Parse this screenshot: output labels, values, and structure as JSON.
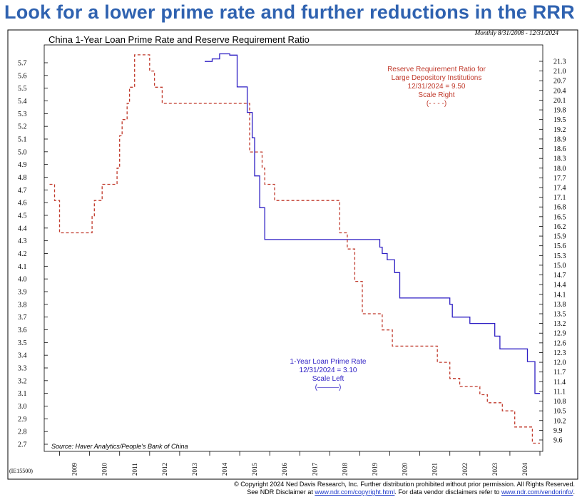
{
  "headline": "Look for a lower prime rate and further reductions in the RRR",
  "chart_data": {
    "type": "line",
    "title": "China 1-Year Loan Prime Rate and Reserve Requirement Ratio",
    "frequency_note": "Monthly 8/31/2008 - 12/31/2024",
    "source": "Source: Haver Analytics/People's Bank of China",
    "chart_code": "(IE15500)",
    "x_ticks": [
      "2009",
      "2010",
      "2011",
      "2012",
      "2013",
      "2014",
      "2015",
      "2016",
      "2017",
      "2018",
      "2019",
      "2020",
      "2021",
      "2022",
      "2023",
      "2024"
    ],
    "left_axis": {
      "ylim": [
        2.7,
        5.7
      ],
      "ticks": [
        "5.7",
        "5.6",
        "5.5",
        "5.4",
        "5.3",
        "5.2",
        "5.1",
        "5.0",
        "4.9",
        "4.8",
        "4.7",
        "4.6",
        "4.5",
        "4.4",
        "4.3",
        "4.2",
        "4.1",
        "4.0",
        "3.9",
        "3.8",
        "3.7",
        "3.6",
        "3.5",
        "3.4",
        "3.3",
        "3.2",
        "3.1",
        "3.0",
        "2.9",
        "2.8",
        "2.7"
      ]
    },
    "right_axis": {
      "ylim": [
        9.6,
        21.3
      ],
      "ticks": [
        "21.3",
        "21.0",
        "20.7",
        "20.4",
        "20.1",
        "19.8",
        "19.5",
        "19.2",
        "18.9",
        "18.6",
        "18.3",
        "18.0",
        "17.7",
        "17.4",
        "17.1",
        "16.8",
        "16.5",
        "16.2",
        "15.9",
        "15.6",
        "15.3",
        "15.0",
        "14.7",
        "14.4",
        "14.1",
        "13.8",
        "13.5",
        "13.2",
        "12.9",
        "12.6",
        "12.3",
        "12.0",
        "11.7",
        "11.4",
        "11.1",
        "10.8",
        "10.5",
        "10.2",
        "9.9",
        "9.6"
      ]
    },
    "series": [
      {
        "name": "1-Year Loan Prime Rate",
        "axis": "left",
        "color": "#2e1fc4",
        "style": "solid",
        "annotation": [
          "1-Year Loan Prime Rate",
          "12/31/2024 = 3.10",
          "Scale Left",
          "(———)"
        ],
        "points": [
          [
            "2013-10-31",
            5.71
          ],
          [
            "2014-01-31",
            5.73
          ],
          [
            "2014-04-30",
            5.77
          ],
          [
            "2014-08-31",
            5.76
          ],
          [
            "2014-10-31",
            5.76
          ],
          [
            "2014-11-30",
            5.51
          ],
          [
            "2015-02-28",
            5.51
          ],
          [
            "2015-03-31",
            5.31
          ],
          [
            "2015-04-30",
            5.31
          ],
          [
            "2015-05-31",
            5.11
          ],
          [
            "2015-06-30",
            4.81
          ],
          [
            "2015-07-31",
            4.81
          ],
          [
            "2015-08-31",
            4.56
          ],
          [
            "2015-09-30",
            4.56
          ],
          [
            "2015-10-31",
            4.31
          ],
          [
            "2019-07-31",
            4.31
          ],
          [
            "2019-08-31",
            4.25
          ],
          [
            "2019-09-30",
            4.2
          ],
          [
            "2019-11-30",
            4.15
          ],
          [
            "2019-12-31",
            4.15
          ],
          [
            "2020-02-29",
            4.05
          ],
          [
            "2020-04-30",
            3.85
          ],
          [
            "2021-11-30",
            3.85
          ],
          [
            "2021-12-31",
            3.8
          ],
          [
            "2022-01-31",
            3.7
          ],
          [
            "2022-07-31",
            3.7
          ],
          [
            "2022-08-31",
            3.65
          ],
          [
            "2023-05-31",
            3.65
          ],
          [
            "2023-06-30",
            3.55
          ],
          [
            "2023-07-31",
            3.55
          ],
          [
            "2023-08-31",
            3.45
          ],
          [
            "2024-06-30",
            3.45
          ],
          [
            "2024-07-31",
            3.35
          ],
          [
            "2024-09-30",
            3.35
          ],
          [
            "2024-10-31",
            3.1
          ],
          [
            "2024-12-31",
            3.1
          ]
        ]
      },
      {
        "name": "Reserve Requirement Ratio for Large Depository Institutions",
        "axis": "right",
        "color": "#c0392b",
        "style": "dashed",
        "annotation": [
          "Reserve Requirement Ratio for",
          "Large Depository Institutions",
          "12/31/2024 = 9.50",
          "Scale Right",
          "(- - - -)"
        ],
        "points": [
          [
            "2008-08-31",
            17.5
          ],
          [
            "2008-10-31",
            17.0
          ],
          [
            "2008-12-31",
            16.0
          ],
          [
            "2009-12-31",
            16.0
          ],
          [
            "2010-01-31",
            16.5
          ],
          [
            "2010-02-28",
            17.0
          ],
          [
            "2010-05-31",
            17.5
          ],
          [
            "2010-11-30",
            18.0
          ],
          [
            "2010-12-31",
            19.0
          ],
          [
            "2011-01-31",
            19.5
          ],
          [
            "2011-03-31",
            20.0
          ],
          [
            "2011-04-30",
            20.5
          ],
          [
            "2011-06-30",
            21.5
          ],
          [
            "2011-12-31",
            21.0
          ],
          [
            "2012-02-29",
            20.5
          ],
          [
            "2012-05-31",
            20.0
          ],
          [
            "2015-02-28",
            20.0
          ],
          [
            "2015-04-30",
            18.5
          ],
          [
            "2015-09-30",
            18.0
          ],
          [
            "2015-10-31",
            17.5
          ],
          [
            "2016-02-29",
            17.0
          ],
          [
            "2018-04-30",
            16.0
          ],
          [
            "2018-07-31",
            15.5
          ],
          [
            "2018-10-31",
            14.5
          ],
          [
            "2019-01-31",
            13.5
          ],
          [
            "2019-09-30",
            13.0
          ],
          [
            "2020-01-31",
            12.5
          ],
          [
            "2021-07-31",
            12.0
          ],
          [
            "2021-12-31",
            11.5
          ],
          [
            "2022-04-30",
            11.25
          ],
          [
            "2022-12-31",
            11.0
          ],
          [
            "2023-03-31",
            10.75
          ],
          [
            "2023-09-30",
            10.5
          ],
          [
            "2024-02-29",
            10.0
          ],
          [
            "2024-09-30",
            9.5
          ],
          [
            "2024-12-31",
            9.5
          ]
        ]
      }
    ],
    "grid": false,
    "legend": "inline annotations"
  },
  "footer": {
    "line1": "© Copyright 2024 Ned Davis Research, Inc.  Further distribution prohibited without prior permission.  All Rights Reserved.",
    "line2_pre": "See NDR Disclaimer at ",
    "line2_link1": "www.ndr.com/copyright.html",
    "line2_mid": ". For data vendor disclaimers refer to ",
    "line2_link2": "www.ndr.com/vendorinfo/",
    "line2_post": "."
  }
}
